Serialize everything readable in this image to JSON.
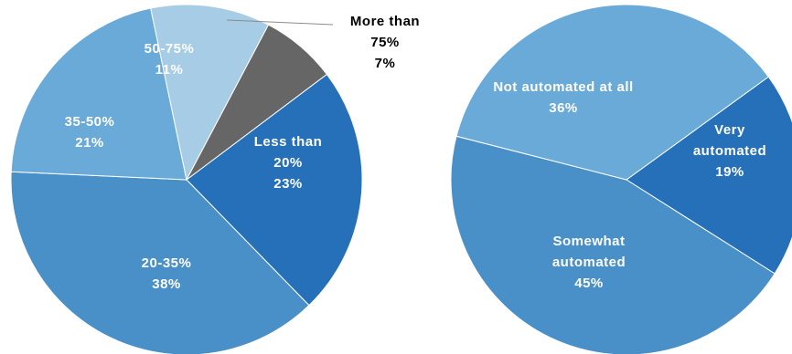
{
  "colors": {
    "dark_blue": "#2570b8",
    "mid_blue": "#4a90c8",
    "light_blue": "#6aaad8",
    "pale_blue": "#a7cce6",
    "gray": "#666666",
    "label_white": "#ffffff",
    "label_black": "#000000"
  },
  "chart_data": [
    {
      "type": "pie",
      "title": "",
      "slices": [
        {
          "lines": [
            "Less than",
            "20%"
          ],
          "value": 23,
          "value_label": "23%",
          "color": "#2570b8",
          "label_color": "#ffffff"
        },
        {
          "lines": [
            "20-35%"
          ],
          "value": 38,
          "value_label": "38%",
          "color": "#4a90c8",
          "label_color": "#ffffff"
        },
        {
          "lines": [
            "35-50%"
          ],
          "value": 21,
          "value_label": "21%",
          "color": "#6aaad8",
          "label_color": "#ffffff"
        },
        {
          "lines": [
            "50-75%"
          ],
          "value": 11,
          "value_label": "11%",
          "color": "#a7cce6",
          "label_color": "#ffffff"
        },
        {
          "lines": [
            "More than",
            "75%"
          ],
          "value": 7,
          "value_label": "7%",
          "color": "#666666",
          "label_color": "#000000",
          "callout": true
        }
      ]
    },
    {
      "type": "pie",
      "title": "",
      "slices": [
        {
          "lines": [
            "Very",
            "automated"
          ],
          "value": 19,
          "value_label": "19%",
          "color": "#2570b8",
          "label_color": "#ffffff"
        },
        {
          "lines": [
            "Somewhat",
            "automated"
          ],
          "value": 45,
          "value_label": "45%",
          "color": "#4a90c8",
          "label_color": "#ffffff"
        },
        {
          "lines": [
            "Not automated at all"
          ],
          "value": 36,
          "value_label": "36%",
          "color": "#6aaad8",
          "label_color": "#ffffff"
        }
      ]
    }
  ]
}
